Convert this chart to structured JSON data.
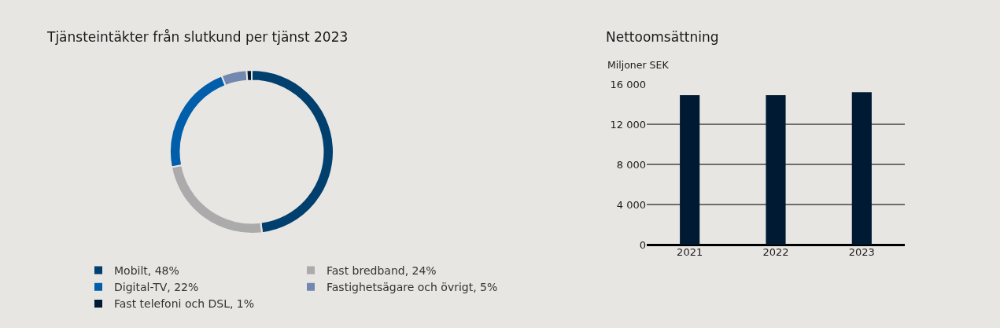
{
  "chart_data": [
    {
      "type": "donut",
      "title": "Tjänsteintäkter från slutkund per tjänst 2023",
      "categories": [
        "Mobilt, 48%",
        "Fast bredband, 24%",
        "Digital-TV, 22%",
        "Fastighetsägare och övrigt, 5%",
        "Fast telefoni och DSL, 1%"
      ],
      "values": [
        48,
        24,
        22,
        5,
        1
      ],
      "colors": [
        "#003f6e",
        "#ababab",
        "#005eaa",
        "#7288b0",
        "#001a33"
      ],
      "legend": "bottom"
    },
    {
      "type": "bar",
      "title": "Nettoomsättning",
      "ylabel": "Miljoner SEK",
      "categories": [
        "2021",
        "2022",
        "2023"
      ],
      "values": [
        14900,
        14900,
        15200
      ],
      "color": "#001a33",
      "ylim": [
        0,
        16000
      ],
      "yticks": [
        {
          "value": 0,
          "label": "0"
        },
        {
          "value": 4000,
          "label": "4 000"
        },
        {
          "value": 8000,
          "label": "8 000"
        },
        {
          "value": 12000,
          "label": "12 000"
        },
        {
          "value": 16000,
          "label": "16 000"
        }
      ],
      "grid": "y"
    }
  ]
}
